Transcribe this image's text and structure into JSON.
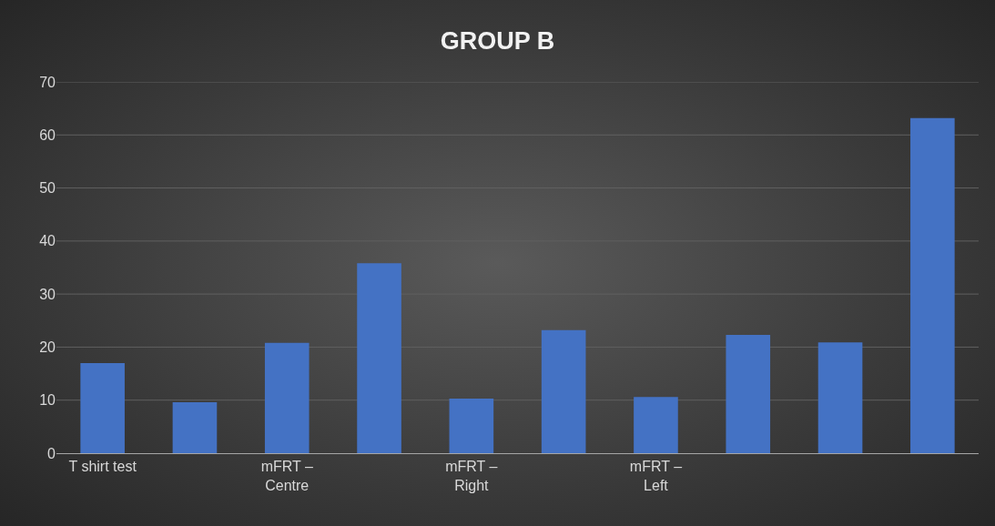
{
  "chart_data": {
    "type": "bar",
    "title": "GROUP B",
    "categories": [
      "T shirt test",
      null,
      "mFRT –\nCentre",
      null,
      "mFRT –\nRight",
      null,
      "mFRT –\nLeft",
      null,
      null,
      null
    ],
    "values": [
      17,
      9.6,
      20.8,
      35.8,
      10.3,
      23.2,
      10.6,
      22.3,
      20.9,
      63.2
    ],
    "color": "#4472c4",
    "ylim": [
      0,
      70
    ],
    "yticks": [
      0,
      10,
      20,
      30,
      40,
      50,
      60,
      70
    ],
    "grid": "y"
  }
}
